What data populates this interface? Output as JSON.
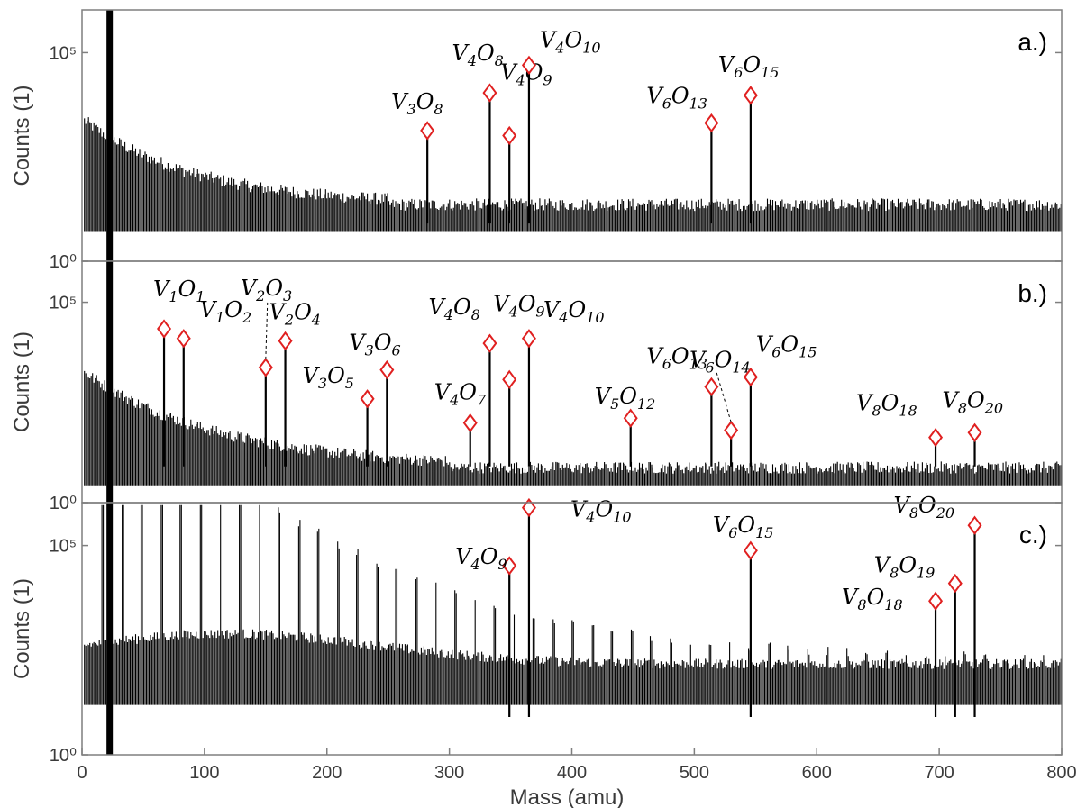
{
  "chart_data": [
    {
      "type": "line",
      "panel_label": "a.)",
      "xlabel": "",
      "ylabel": "Counts (1)",
      "xlim": [
        0,
        800
      ],
      "y_scale": "log",
      "y_ticks": [
        {
          "value": 1,
          "label": "10⁰"
        },
        {
          "value": 100000,
          "label": "10⁵"
        }
      ],
      "peaks": [
        {
          "species": "V3O8",
          "base": "V",
          "n1": "3",
          "el2": "O",
          "n2": "8",
          "mass": 282,
          "rel": 0.52
        },
        {
          "species": "V4O8",
          "base": "V",
          "n1": "4",
          "el2": "O",
          "n2": "8",
          "mass": 333,
          "rel": 0.67
        },
        {
          "species": "V4O9",
          "base": "V",
          "n1": "4",
          "el2": "O",
          "n2": "9",
          "mass": 349,
          "rel": 0.5
        },
        {
          "species": "V4O10",
          "base": "V",
          "n1": "4",
          "el2": "O",
          "n2": "10",
          "mass": 365,
          "rel": 0.78
        },
        {
          "species": "V6O13",
          "base": "V",
          "n1": "6",
          "el2": "O",
          "n2": "13",
          "mass": 514,
          "rel": 0.55
        },
        {
          "species": "V6O15",
          "base": "V",
          "n1": "6",
          "el2": "O",
          "n2": "15",
          "mass": 546,
          "rel": 0.66
        }
      ]
    },
    {
      "type": "line",
      "panel_label": "b.)",
      "xlabel": "",
      "ylabel": "Counts (1)",
      "xlim": [
        0,
        800
      ],
      "y_scale": "log",
      "y_ticks": [
        {
          "value": 1,
          "label": "10⁰"
        },
        {
          "value": 100000,
          "label": "10⁵"
        }
      ],
      "peaks": [
        {
          "species": "V1O1",
          "base": "V",
          "n1": "1",
          "el2": "O",
          "n2": "1",
          "mass": 67,
          "rel": 0.72
        },
        {
          "species": "V1O2",
          "base": "V",
          "n1": "1",
          "el2": "O",
          "n2": "2",
          "mass": 83,
          "rel": 0.68
        },
        {
          "species": "V2O3",
          "base": "V",
          "n1": "2",
          "el2": "O",
          "n2": "3",
          "mass": 150,
          "rel": 0.56
        },
        {
          "species": "V2O4",
          "base": "V",
          "n1": "2",
          "el2": "O",
          "n2": "4",
          "mass": 166,
          "rel": 0.67
        },
        {
          "species": "V3O5",
          "base": "V",
          "n1": "3",
          "el2": "O",
          "n2": "5",
          "mass": 233,
          "rel": 0.43
        },
        {
          "species": "V3O6",
          "base": "V",
          "n1": "3",
          "el2": "O",
          "n2": "6",
          "mass": 249,
          "rel": 0.55
        },
        {
          "species": "V4O7",
          "base": "V",
          "n1": "4",
          "el2": "O",
          "n2": "7",
          "mass": 317,
          "rel": 0.33
        },
        {
          "species": "V4O8",
          "base": "V",
          "n1": "4",
          "el2": "O",
          "n2": "8",
          "mass": 333,
          "rel": 0.66
        },
        {
          "species": "V4O9",
          "base": "V",
          "n1": "4",
          "el2": "O",
          "n2": "9",
          "mass": 349,
          "rel": 0.51
        },
        {
          "species": "V4O10",
          "base": "V",
          "n1": "4",
          "el2": "O",
          "n2": "10",
          "mass": 365,
          "rel": 0.68
        },
        {
          "species": "V5O12",
          "base": "V",
          "n1": "5",
          "el2": "O",
          "n2": "12",
          "mass": 448,
          "rel": 0.35
        },
        {
          "species": "V6O13",
          "base": "V",
          "n1": "6",
          "el2": "O",
          "n2": "13",
          "mass": 514,
          "rel": 0.48
        },
        {
          "species": "V6O14",
          "base": "V",
          "n1": "6",
          "el2": "O",
          "n2": "14",
          "mass": 530,
          "rel": 0.3
        },
        {
          "species": "V6O15",
          "base": "V",
          "n1": "6",
          "el2": "O",
          "n2": "15",
          "mass": 546,
          "rel": 0.52
        },
        {
          "species": "V8O18",
          "base": "V",
          "n1": "8",
          "el2": "O",
          "n2": "18",
          "mass": 697,
          "rel": 0.27
        },
        {
          "species": "V8O20",
          "base": "V",
          "n1": "8",
          "el2": "O",
          "n2": "20",
          "mass": 729,
          "rel": 0.29
        }
      ]
    },
    {
      "type": "line",
      "panel_label": "c.)",
      "xlabel": "Mass (amu)",
      "ylabel": "Counts (1)",
      "xlim": [
        0,
        800
      ],
      "x_ticks": [
        0,
        100,
        200,
        300,
        400,
        500,
        600,
        700,
        800
      ],
      "y_scale": "log",
      "y_ticks": [
        {
          "value": 1,
          "label": "10⁰"
        },
        {
          "value": 100000,
          "label": "10⁵"
        }
      ],
      "peaks": [
        {
          "species": "V4O9",
          "base": "V",
          "n1": "4",
          "el2": "O",
          "n2": "9",
          "mass": 349,
          "rel": 0.75
        },
        {
          "species": "V4O10",
          "base": "V",
          "n1": "4",
          "el2": "O",
          "n2": "10",
          "mass": 365,
          "rel": 0.98
        },
        {
          "species": "V6O15",
          "base": "V",
          "n1": "6",
          "el2": "O",
          "n2": "15",
          "mass": 546,
          "rel": 0.81
        },
        {
          "species": "V8O18",
          "base": "V",
          "n1": "8",
          "el2": "O",
          "n2": "18",
          "mass": 697,
          "rel": 0.61
        },
        {
          "species": "V8O19",
          "base": "V",
          "n1": "8",
          "el2": "O",
          "n2": "19",
          "mass": 713,
          "rel": 0.68
        },
        {
          "species": "V8O20",
          "base": "V",
          "n1": "8",
          "el2": "O",
          "n2": "20",
          "mass": 729,
          "rel": 0.91
        }
      ]
    }
  ],
  "colors": {
    "trace": "#000000",
    "marker": "#e02020",
    "frame": "#7f7f7f"
  }
}
